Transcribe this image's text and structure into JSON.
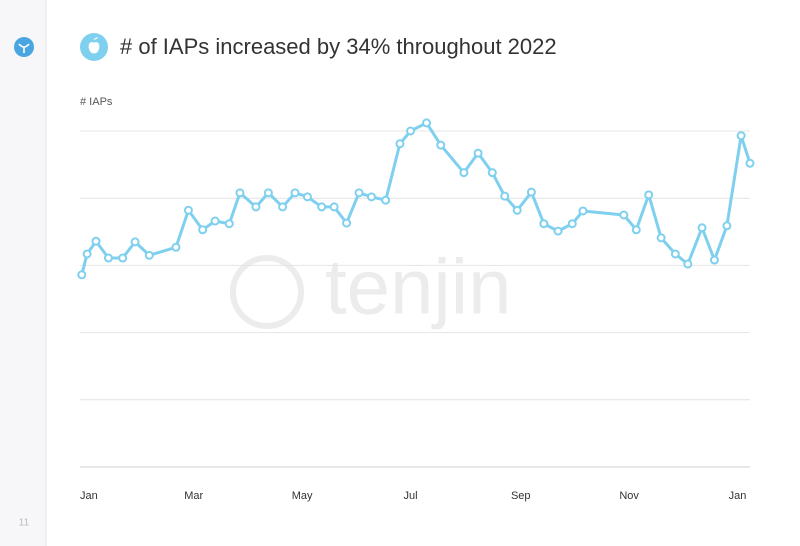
{
  "sidebar": {
    "page_number": "11"
  },
  "watermark": "tenjin",
  "chart_data": {
    "type": "line",
    "title": "# of IAPs increased by 34% throughout 2022",
    "y_label": "# IAPs",
    "x": [
      -4,
      -1,
      4,
      11,
      19,
      26,
      34,
      49,
      56,
      64,
      71,
      79,
      85,
      94,
      101,
      109,
      116,
      123,
      131,
      138,
      145,
      152,
      159,
      167,
      175,
      181,
      190,
      198,
      211,
      219,
      227,
      234,
      241,
      249,
      256,
      264,
      272,
      278,
      301,
      308,
      315,
      322,
      330,
      337,
      345,
      352,
      359,
      367,
      372
    ],
    "series": [
      {
        "name": "# IAPs",
        "color": "#7fd0ee",
        "values": [
          2.86,
          3.17,
          3.36,
          3.11,
          3.11,
          3.35,
          3.15,
          3.27,
          3.82,
          3.53,
          3.66,
          3.62,
          4.08,
          3.87,
          4.08,
          3.87,
          4.08,
          4.02,
          3.87,
          3.87,
          3.63,
          4.08,
          4.02,
          3.97,
          4.81,
          5.0,
          5.12,
          4.79,
          4.38,
          4.67,
          4.38,
          4.03,
          3.82,
          4.09,
          3.62,
          3.51,
          3.62,
          3.81,
          3.75,
          3.53,
          4.05,
          3.41,
          3.17,
          3.02,
          3.56,
          3.08,
          3.59,
          4.93,
          4.52
        ]
      }
    ],
    "xlim": [
      -5,
      372
    ],
    "xticks": [
      {
        "value": 0,
        "label": "Jan"
      },
      {
        "value": 59,
        "label": "Mar"
      },
      {
        "value": 120,
        "label": "May"
      },
      {
        "value": 181,
        "label": "Jul"
      },
      {
        "value": 243,
        "label": "Sep"
      },
      {
        "value": 304,
        "label": "Nov"
      },
      {
        "value": 365,
        "label": "Jan"
      }
    ],
    "ylim": [
      0,
      5
    ],
    "yticks": [
      0,
      1,
      2,
      3,
      4,
      5
    ],
    "grid": true
  }
}
